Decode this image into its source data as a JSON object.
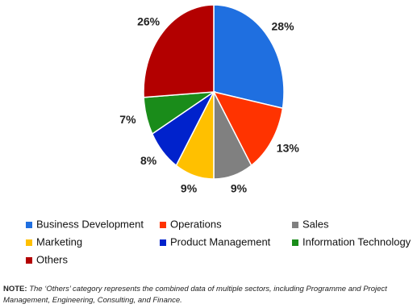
{
  "chart_data": {
    "type": "pie",
    "categories": [
      "Business Development",
      "Operations",
      "Sales",
      "Marketing",
      "Product Management",
      "Information Technology",
      "Others"
    ],
    "values": [
      28,
      13,
      9,
      9,
      8,
      7,
      26
    ],
    "value_labels": [
      "28%",
      "13%",
      "9%",
      "9%",
      "8%",
      "7%",
      "26%"
    ],
    "colors": [
      "#1f6fe0",
      "#ff3300",
      "#808080",
      "#ffc000",
      "#0022cc",
      "#1a8c1a",
      "#b30000"
    ],
    "legend": "bottom"
  },
  "note_label": "NOTE:",
  "note": "The ‘Others’ category represents the combined data of multiple sectors, including Programme and Project Management, Engineering, Consulting, and Finance."
}
